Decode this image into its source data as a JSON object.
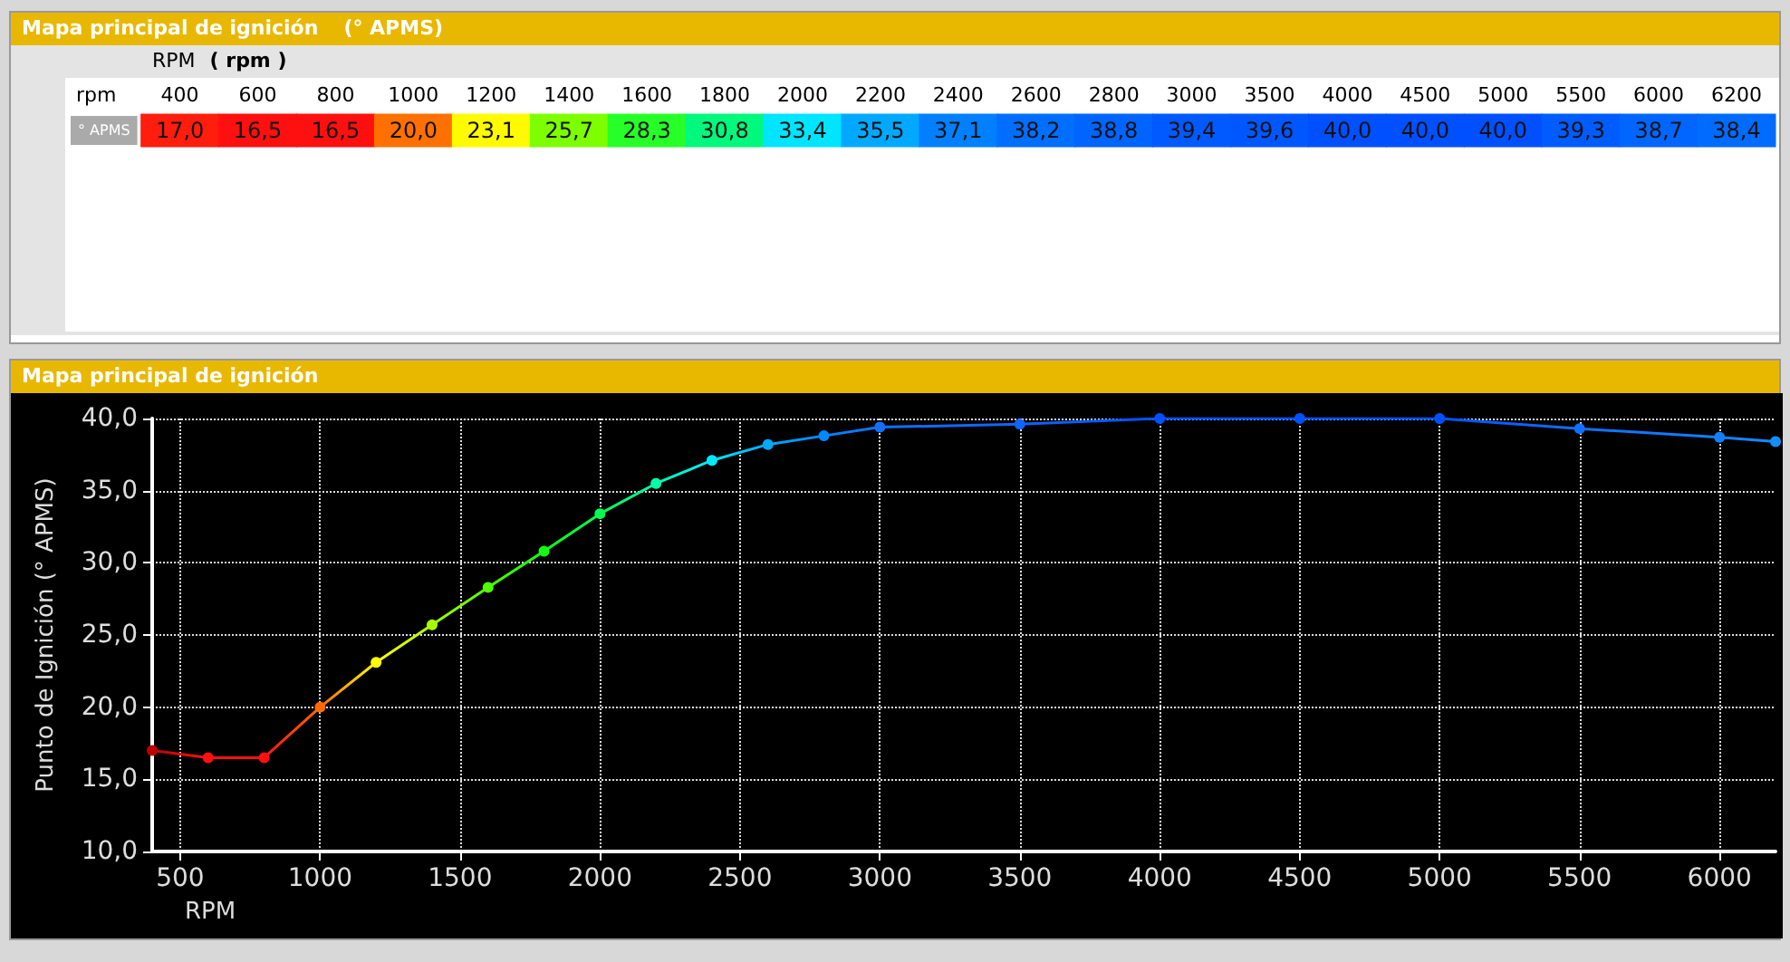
{
  "chart_data": [
    {
      "type": "heatmap",
      "title": "Mapa principal de ignición",
      "annotations": [
        "(° APMS)",
        "RPM",
        "( rpm )",
        "rpm"
      ],
      "categories": [
        "400",
        "600",
        "800",
        "1000",
        "1200",
        "1400",
        "1600",
        "1800",
        "2000",
        "2200",
        "2400",
        "2600",
        "2800",
        "3000",
        "3500",
        "4000",
        "4500",
        "5000",
        "5500",
        "6000",
        "6200"
      ],
      "y_categories": [
        "° APMS"
      ],
      "cells": [
        [
          17.0,
          16.5,
          16.5,
          20.0,
          23.1,
          25.7,
          28.3,
          30.8,
          33.4,
          35.5,
          37.1,
          38.2,
          38.8,
          39.4,
          39.6,
          40.0,
          40.0,
          40.0,
          39.3,
          38.7,
          38.4
        ]
      ],
      "cell_labels": [
        [
          "17,0",
          "16,5",
          "16,5",
          "20,0",
          "23,1",
          "25,7",
          "28,3",
          "30,8",
          "33,4",
          "35,5",
          "37,1",
          "38,2",
          "38,8",
          "39,4",
          "39,6",
          "40,0",
          "40,0",
          "40,0",
          "39,3",
          "38,7",
          "38,4"
        ]
      ]
    },
    {
      "type": "line",
      "title": "Mapa principal de ignición",
      "xlabel": "RPM",
      "ylabel": "Punto de Ignición (° APMS)",
      "x": [
        400,
        600,
        800,
        1000,
        1200,
        1400,
        1600,
        1800,
        2000,
        2200,
        2400,
        2600,
        2800,
        3000,
        3500,
        4000,
        4500,
        5000,
        5500,
        6000,
        6200
      ],
      "series": [
        {
          "values": [
            17.0,
            16.5,
            16.5,
            20.0,
            23.1,
            25.7,
            28.3,
            30.8,
            33.4,
            35.5,
            37.1,
            38.2,
            38.8,
            39.4,
            39.6,
            40.0,
            40.0,
            40.0,
            39.3,
            38.7,
            38.4
          ],
          "colors": [
            "#c00000",
            "#ff1010",
            "#ff1010",
            "#ff6a00",
            "#ffff00",
            "#a8ff00",
            "#50ff00",
            "#10ff10",
            "#00ff50",
            "#00ffa8",
            "#00e8ff",
            "#00a8ff",
            "#0088ff",
            "#1070ff",
            "#1064ff",
            "#0050ff",
            "#0050ff",
            "#0050ff",
            "#1070ff",
            "#1080ff",
            "#1090ff"
          ]
        }
      ],
      "xlim": [
        400,
        6200
      ],
      "xticks": [
        500,
        1000,
        1500,
        2000,
        2500,
        3000,
        3500,
        4000,
        4500,
        5000,
        5500,
        6000
      ],
      "ylim": [
        10,
        40
      ],
      "yticks": [
        {
          "value": 10,
          "label": "10,0"
        },
        {
          "value": 15,
          "label": "15,0"
        },
        {
          "value": 20,
          "label": "20,0"
        },
        {
          "value": 25,
          "label": "25,0"
        },
        {
          "value": 30,
          "label": "30,0"
        },
        {
          "value": 35,
          "label": "35,0"
        },
        {
          "value": 40,
          "label": "40,0"
        }
      ],
      "grid": true,
      "marker": "circle",
      "line_style": "solid"
    }
  ]
}
